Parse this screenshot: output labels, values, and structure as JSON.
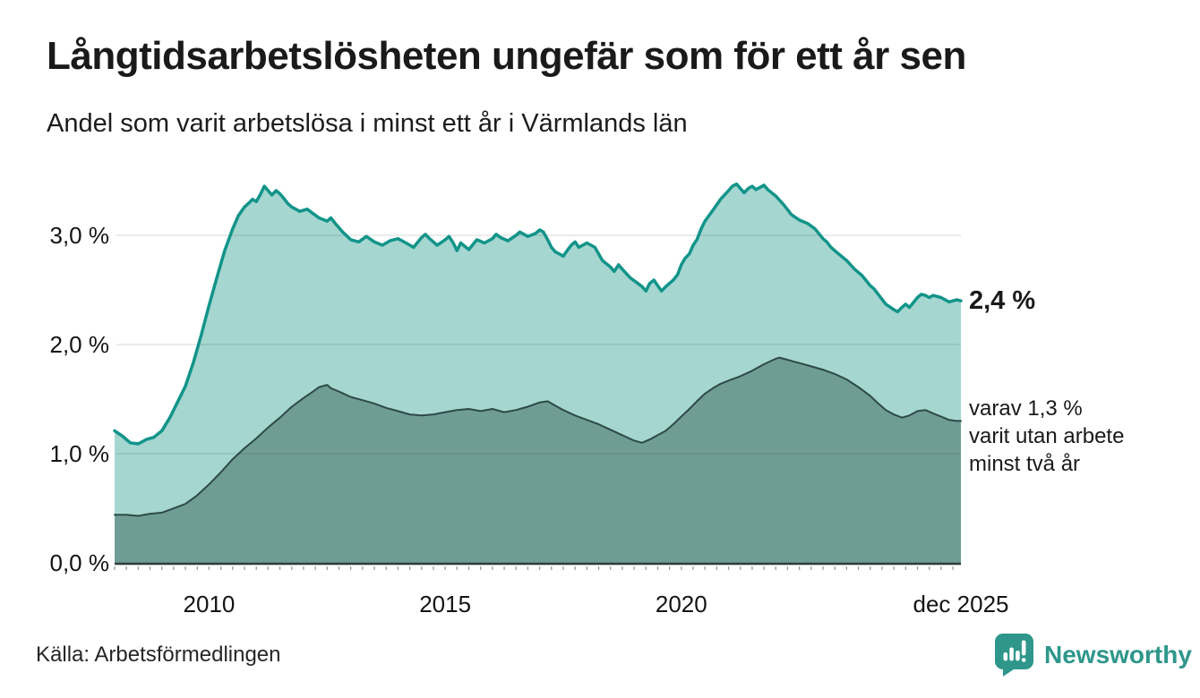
{
  "header": {
    "title": "Långtidsarbetslösheten ungefär som för ett år sen",
    "subtitle": "Andel som varit arbetslösa i minst ett år i Värmlands län"
  },
  "annotations": {
    "total_end_label": "2,4 %",
    "secondary_lines": [
      "varav 1,3 %",
      "varit utan arbete",
      "minst två år"
    ]
  },
  "footer": {
    "source": "Källa: Arbetsförmedlingen",
    "brand_name": "Newsworthy",
    "brand_color": "#2e968b"
  },
  "colors": {
    "accent_teal": "#12948a",
    "fill_light": "#a5d6d0",
    "fill_dark": "#6f9d96",
    "line_dark": "#2e4a45",
    "axis_line": "#2e3d3a",
    "minor_tick": "#8fa29d",
    "grid_overlay": "rgba(30,50,45,0.13)",
    "text": "#1a1a1a"
  },
  "chart_data": {
    "type": "area",
    "title": "Långtidsarbetslösheten ungefär som för ett år sen",
    "subtitle": "Andel som varit arbetslösa i minst ett år i Värmlands län",
    "unit": "%",
    "x_axis": {
      "range": [
        2008.0,
        2025.92
      ],
      "minor_tick_interval": 0.25,
      "ticks": [
        {
          "label": "2010",
          "x": 2010.0
        },
        {
          "label": "2015",
          "x": 2015.0
        },
        {
          "label": "2020",
          "x": 2020.0
        },
        {
          "label": "dec 2025",
          "x": 2025.92
        }
      ]
    },
    "y_axis": {
      "range": [
        0,
        3.52
      ],
      "grid": true,
      "ticks": [
        {
          "label": "0,0 %",
          "value": 0
        },
        {
          "label": "1,0 %",
          "value": 1
        },
        {
          "label": "2,0 %",
          "value": 2
        },
        {
          "label": "3,0 %",
          "value": 3
        }
      ]
    },
    "series": [
      {
        "name": "Andel som varit arbetslösa minst ett år",
        "end_value": 2.4,
        "fill": "#a5d6d0",
        "stroke": "#12948a",
        "stroke_width": 3.5,
        "points": [
          [
            2008.0,
            1.21
          ],
          [
            2008.17,
            1.16
          ],
          [
            2008.33,
            1.1
          ],
          [
            2008.5,
            1.09
          ],
          [
            2008.67,
            1.13
          ],
          [
            2008.83,
            1.15
          ],
          [
            2009.0,
            1.21
          ],
          [
            2009.17,
            1.33
          ],
          [
            2009.33,
            1.47
          ],
          [
            2009.5,
            1.62
          ],
          [
            2009.67,
            1.84
          ],
          [
            2009.83,
            2.08
          ],
          [
            2010.0,
            2.36
          ],
          [
            2010.17,
            2.62
          ],
          [
            2010.33,
            2.86
          ],
          [
            2010.5,
            3.06
          ],
          [
            2010.62,
            3.18
          ],
          [
            2010.75,
            3.26
          ],
          [
            2010.83,
            3.29
          ],
          [
            2010.92,
            3.33
          ],
          [
            2011.0,
            3.31
          ],
          [
            2011.08,
            3.37
          ],
          [
            2011.17,
            3.45
          ],
          [
            2011.25,
            3.41
          ],
          [
            2011.33,
            3.37
          ],
          [
            2011.42,
            3.41
          ],
          [
            2011.5,
            3.38
          ],
          [
            2011.58,
            3.34
          ],
          [
            2011.67,
            3.29
          ],
          [
            2011.75,
            3.26
          ],
          [
            2011.92,
            3.22
          ],
          [
            2012.08,
            3.24
          ],
          [
            2012.17,
            3.21
          ],
          [
            2012.33,
            3.16
          ],
          [
            2012.5,
            3.13
          ],
          [
            2012.58,
            3.16
          ],
          [
            2012.67,
            3.11
          ],
          [
            2012.83,
            3.03
          ],
          [
            2013.0,
            2.96
          ],
          [
            2013.17,
            2.94
          ],
          [
            2013.33,
            2.99
          ],
          [
            2013.5,
            2.94
          ],
          [
            2013.67,
            2.91
          ],
          [
            2013.83,
            2.95
          ],
          [
            2014.0,
            2.97
          ],
          [
            2014.17,
            2.93
          ],
          [
            2014.33,
            2.89
          ],
          [
            2014.5,
            2.98
          ],
          [
            2014.58,
            3.01
          ],
          [
            2014.67,
            2.97
          ],
          [
            2014.83,
            2.91
          ],
          [
            2015.0,
            2.96
          ],
          [
            2015.08,
            2.99
          ],
          [
            2015.17,
            2.93
          ],
          [
            2015.25,
            2.86
          ],
          [
            2015.33,
            2.93
          ],
          [
            2015.5,
            2.87
          ],
          [
            2015.67,
            2.96
          ],
          [
            2015.83,
            2.93
          ],
          [
            2016.0,
            2.97
          ],
          [
            2016.08,
            3.01
          ],
          [
            2016.17,
            2.98
          ],
          [
            2016.33,
            2.95
          ],
          [
            2016.5,
            3.0
          ],
          [
            2016.58,
            3.03
          ],
          [
            2016.75,
            2.99
          ],
          [
            2016.92,
            3.02
          ],
          [
            2017.0,
            3.05
          ],
          [
            2017.08,
            3.03
          ],
          [
            2017.17,
            2.96
          ],
          [
            2017.25,
            2.89
          ],
          [
            2017.33,
            2.85
          ],
          [
            2017.5,
            2.81
          ],
          [
            2017.58,
            2.86
          ],
          [
            2017.67,
            2.91
          ],
          [
            2017.75,
            2.94
          ],
          [
            2017.83,
            2.89
          ],
          [
            2018.0,
            2.93
          ],
          [
            2018.17,
            2.89
          ],
          [
            2018.33,
            2.77
          ],
          [
            2018.5,
            2.71
          ],
          [
            2018.58,
            2.67
          ],
          [
            2018.67,
            2.73
          ],
          [
            2018.75,
            2.69
          ],
          [
            2018.92,
            2.61
          ],
          [
            2019.08,
            2.56
          ],
          [
            2019.17,
            2.53
          ],
          [
            2019.25,
            2.49
          ],
          [
            2019.33,
            2.56
          ],
          [
            2019.42,
            2.59
          ],
          [
            2019.5,
            2.54
          ],
          [
            2019.58,
            2.49
          ],
          [
            2019.67,
            2.53
          ],
          [
            2019.83,
            2.59
          ],
          [
            2019.92,
            2.64
          ],
          [
            2020.0,
            2.73
          ],
          [
            2020.08,
            2.79
          ],
          [
            2020.17,
            2.83
          ],
          [
            2020.25,
            2.91
          ],
          [
            2020.33,
            2.96
          ],
          [
            2020.42,
            3.06
          ],
          [
            2020.5,
            3.13
          ],
          [
            2020.67,
            3.23
          ],
          [
            2020.83,
            3.33
          ],
          [
            2021.0,
            3.41
          ],
          [
            2021.08,
            3.45
          ],
          [
            2021.17,
            3.47
          ],
          [
            2021.25,
            3.43
          ],
          [
            2021.33,
            3.39
          ],
          [
            2021.42,
            3.43
          ],
          [
            2021.5,
            3.45
          ],
          [
            2021.58,
            3.42
          ],
          [
            2021.67,
            3.44
          ],
          [
            2021.75,
            3.46
          ],
          [
            2021.83,
            3.42
          ],
          [
            2022.0,
            3.36
          ],
          [
            2022.17,
            3.28
          ],
          [
            2022.33,
            3.19
          ],
          [
            2022.5,
            3.14
          ],
          [
            2022.67,
            3.11
          ],
          [
            2022.83,
            3.06
          ],
          [
            2023.0,
            2.97
          ],
          [
            2023.08,
            2.94
          ],
          [
            2023.17,
            2.89
          ],
          [
            2023.33,
            2.83
          ],
          [
            2023.5,
            2.77
          ],
          [
            2023.67,
            2.69
          ],
          [
            2023.83,
            2.63
          ],
          [
            2024.0,
            2.54
          ],
          [
            2024.08,
            2.51
          ],
          [
            2024.17,
            2.46
          ],
          [
            2024.33,
            2.37
          ],
          [
            2024.5,
            2.32
          ],
          [
            2024.58,
            2.3
          ],
          [
            2024.67,
            2.34
          ],
          [
            2024.75,
            2.37
          ],
          [
            2024.83,
            2.34
          ],
          [
            2025.0,
            2.43
          ],
          [
            2025.08,
            2.46
          ],
          [
            2025.17,
            2.45
          ],
          [
            2025.25,
            2.43
          ],
          [
            2025.33,
            2.45
          ],
          [
            2025.5,
            2.43
          ],
          [
            2025.67,
            2.39
          ],
          [
            2025.83,
            2.41
          ],
          [
            2025.92,
            2.4
          ]
        ]
      },
      {
        "name": "varav arbetslösa minst två år",
        "end_value": 1.3,
        "fill": "#6f9d96",
        "stroke": "#2e4a45",
        "stroke_width": 2,
        "points": [
          [
            2008.0,
            0.44
          ],
          [
            2008.25,
            0.44
          ],
          [
            2008.5,
            0.43
          ],
          [
            2008.75,
            0.45
          ],
          [
            2009.0,
            0.46
          ],
          [
            2009.25,
            0.5
          ],
          [
            2009.5,
            0.54
          ],
          [
            2009.75,
            0.62
          ],
          [
            2010.0,
            0.72
          ],
          [
            2010.25,
            0.83
          ],
          [
            2010.5,
            0.95
          ],
          [
            2010.75,
            1.05
          ],
          [
            2011.0,
            1.14
          ],
          [
            2011.25,
            1.24
          ],
          [
            2011.5,
            1.33
          ],
          [
            2011.75,
            1.43
          ],
          [
            2012.0,
            1.51
          ],
          [
            2012.17,
            1.56
          ],
          [
            2012.33,
            1.61
          ],
          [
            2012.5,
            1.63
          ],
          [
            2012.58,
            1.6
          ],
          [
            2012.75,
            1.57
          ],
          [
            2013.0,
            1.52
          ],
          [
            2013.25,
            1.49
          ],
          [
            2013.5,
            1.46
          ],
          [
            2013.75,
            1.42
          ],
          [
            2014.0,
            1.39
          ],
          [
            2014.25,
            1.36
          ],
          [
            2014.5,
            1.35
          ],
          [
            2014.75,
            1.36
          ],
          [
            2015.0,
            1.38
          ],
          [
            2015.25,
            1.4
          ],
          [
            2015.5,
            1.41
          ],
          [
            2015.75,
            1.39
          ],
          [
            2016.0,
            1.41
          ],
          [
            2016.25,
            1.38
          ],
          [
            2016.5,
            1.4
          ],
          [
            2016.75,
            1.43
          ],
          [
            2017.0,
            1.47
          ],
          [
            2017.17,
            1.48
          ],
          [
            2017.33,
            1.44
          ],
          [
            2017.5,
            1.4
          ],
          [
            2017.75,
            1.35
          ],
          [
            2018.0,
            1.31
          ],
          [
            2018.25,
            1.27
          ],
          [
            2018.5,
            1.22
          ],
          [
            2018.75,
            1.17
          ],
          [
            2019.0,
            1.12
          ],
          [
            2019.17,
            1.1
          ],
          [
            2019.33,
            1.13
          ],
          [
            2019.5,
            1.17
          ],
          [
            2019.67,
            1.21
          ],
          [
            2019.83,
            1.27
          ],
          [
            2020.0,
            1.34
          ],
          [
            2020.17,
            1.41
          ],
          [
            2020.33,
            1.48
          ],
          [
            2020.5,
            1.55
          ],
          [
            2020.67,
            1.6
          ],
          [
            2020.83,
            1.64
          ],
          [
            2021.0,
            1.67
          ],
          [
            2021.25,
            1.71
          ],
          [
            2021.5,
            1.76
          ],
          [
            2021.75,
            1.82
          ],
          [
            2022.0,
            1.87
          ],
          [
            2022.08,
            1.88
          ],
          [
            2022.25,
            1.86
          ],
          [
            2022.5,
            1.83
          ],
          [
            2022.75,
            1.8
          ],
          [
            2023.0,
            1.77
          ],
          [
            2023.25,
            1.73
          ],
          [
            2023.5,
            1.68
          ],
          [
            2023.75,
            1.61
          ],
          [
            2024.0,
            1.53
          ],
          [
            2024.17,
            1.46
          ],
          [
            2024.33,
            1.4
          ],
          [
            2024.5,
            1.36
          ],
          [
            2024.67,
            1.33
          ],
          [
            2024.83,
            1.35
          ],
          [
            2025.0,
            1.39
          ],
          [
            2025.17,
            1.4
          ],
          [
            2025.33,
            1.37
          ],
          [
            2025.5,
            1.34
          ],
          [
            2025.67,
            1.31
          ],
          [
            2025.83,
            1.3
          ],
          [
            2025.92,
            1.3
          ]
        ]
      }
    ]
  }
}
